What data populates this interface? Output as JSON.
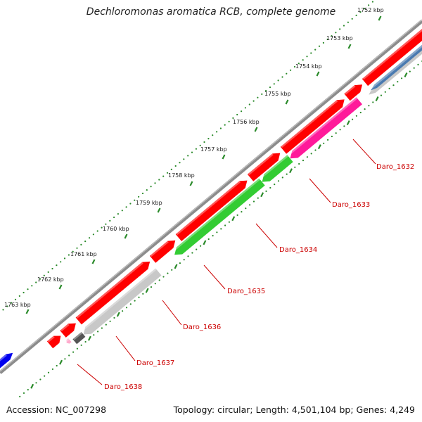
{
  "title": "Dechloromonas aromatica RCB, complete genome",
  "footer": {
    "accession": "Accession: NC_007298",
    "summary": "Topology: circular; Length: 4,501,104 bp; Genes: 4,249"
  },
  "colors": {
    "backbone": "#8c8c8c",
    "tick": "#2a8a2a",
    "label": "#cc0000",
    "forward_gene": "#ff0000",
    "pink_gene": "#ff1a9a",
    "green_gene": "#33cc33",
    "gray_gene": "#c8c8c8",
    "dark_gray_gene": "#555555",
    "steel_gene": "#4a7ab0",
    "blue_gene": "#0000ee",
    "light_pink_gene": "#ffaacc"
  },
  "kbp_markers": [
    "1752 kbp",
    "1753 kbp",
    "1754 kbp",
    "1755 kbp",
    "1756 kbp",
    "1757 kbp",
    "1758 kbp",
    "1759 kbp",
    "1760 kbp",
    "1761 kbp",
    "1762 kbp",
    "1763 kbp"
  ],
  "gene_labels": [
    "Daro_1632",
    "Daro_1633",
    "Daro_1634",
    "Daro_1635",
    "Daro_1636",
    "Daro_1637",
    "Daro_1638"
  ]
}
